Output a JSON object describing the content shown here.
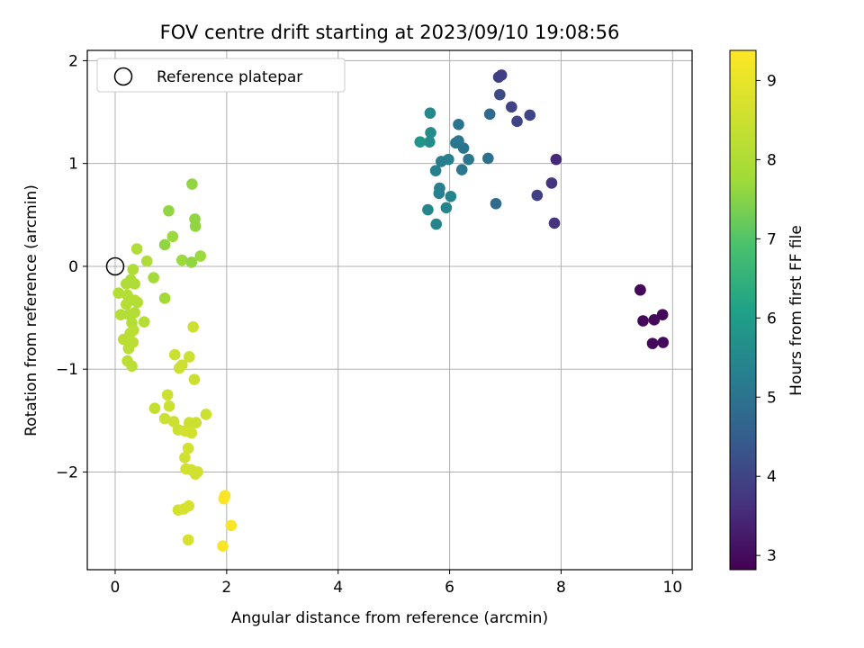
{
  "chart_data": {
    "type": "scatter",
    "title": "FOV centre drift starting at 2023/09/10 19:08:56",
    "xlabel": "Angular distance from reference (arcmin)",
    "ylabel": "Rotation from reference (arcmin)",
    "xlim": [
      -0.5,
      10.35
    ],
    "ylim": [
      -2.95,
      2.1
    ],
    "xticks": [
      0,
      2,
      4,
      6,
      8,
      10
    ],
    "yticks": [
      -2,
      -1,
      0,
      1,
      2
    ],
    "xtick_labels": [
      "0",
      "2",
      "4",
      "6",
      "8",
      "10"
    ],
    "ytick_labels": [
      "−2",
      "−1",
      "0",
      "1",
      "2"
    ],
    "grid": true,
    "legend": {
      "position": "top-left",
      "label": "Reference platepar"
    },
    "reference_point": {
      "x": 0,
      "y": 0
    },
    "colorbar": {
      "label": "Hours from first FF file",
      "min": 2.82,
      "max": 9.38,
      "ticks": [
        3,
        4,
        5,
        6,
        7,
        8,
        9
      ],
      "tick_labels": [
        "3",
        "4",
        "5",
        "6",
        "7",
        "8",
        "9"
      ],
      "colormap": "viridis"
    },
    "points": [
      [
        9.42,
        -0.23,
        2.9
      ],
      [
        9.42,
        -0.23,
        2.9
      ],
      [
        9.47,
        -0.53,
        2.95
      ],
      [
        9.67,
        -0.52,
        2.95
      ],
      [
        9.82,
        -0.47,
        2.95
      ],
      [
        9.64,
        -0.75,
        2.95
      ],
      [
        9.83,
        -0.74,
        2.95
      ],
      [
        6.88,
        1.84,
        3.9
      ],
      [
        6.93,
        1.86,
        3.9
      ],
      [
        7.11,
        1.55,
        4.0
      ],
      [
        7.44,
        1.47,
        4.0
      ],
      [
        7.21,
        1.41,
        4.0
      ],
      [
        6.9,
        1.67,
        4.1
      ],
      [
        7.91,
        1.04,
        3.5
      ],
      [
        7.83,
        0.81,
        3.7
      ],
      [
        7.57,
        0.69,
        3.9
      ],
      [
        7.88,
        0.42,
        3.7
      ],
      [
        6.72,
        1.48,
        4.8
      ],
      [
        6.83,
        0.61,
        4.8
      ],
      [
        6.69,
        1.05,
        4.9
      ],
      [
        6.16,
        1.38,
        5.0
      ],
      [
        6.16,
        1.22,
        5.1
      ],
      [
        6.11,
        1.2,
        5.1
      ],
      [
        6.25,
        1.15,
        5.0
      ],
      [
        6.34,
        1.04,
        5.1
      ],
      [
        6.22,
        0.94,
        5.1
      ],
      [
        5.98,
        1.04,
        5.3
      ],
      [
        5.85,
        1.02,
        5.2
      ],
      [
        5.75,
        0.93,
        5.3
      ],
      [
        5.81,
        0.71,
        5.3
      ],
      [
        5.82,
        0.76,
        5.3
      ],
      [
        6.02,
        0.68,
        5.4
      ],
      [
        5.94,
        0.57,
        5.4
      ],
      [
        5.61,
        0.55,
        5.4
      ],
      [
        5.76,
        0.41,
        5.4
      ],
      [
        5.65,
        1.49,
        5.5
      ],
      [
        5.66,
        1.3,
        5.6
      ],
      [
        5.64,
        1.21,
        5.6
      ],
      [
        5.47,
        1.21,
        5.8
      ],
      [
        1.38,
        0.8,
        7.6
      ],
      [
        0.96,
        0.54,
        7.6
      ],
      [
        1.43,
        0.46,
        7.6
      ],
      [
        1.44,
        0.39,
        7.6
      ],
      [
        1.03,
        0.29,
        7.7
      ],
      [
        0.89,
        0.21,
        7.6
      ],
      [
        1.2,
        0.06,
        7.7
      ],
      [
        1.37,
        0.04,
        7.6
      ],
      [
        1.53,
        0.1,
        7.7
      ],
      [
        0.69,
        -0.11,
        7.8
      ],
      [
        0.89,
        -0.31,
        7.8
      ],
      [
        0.39,
        0.17,
        8.0
      ],
      [
        0.57,
        0.05,
        8.0
      ],
      [
        0.32,
        -0.03,
        8.0
      ],
      [
        0.28,
        -0.13,
        8.0
      ],
      [
        0.35,
        -0.17,
        8.0
      ],
      [
        0.2,
        -0.17,
        8.0
      ],
      [
        0.06,
        -0.26,
        8.1
      ],
      [
        0.22,
        -0.28,
        8.1
      ],
      [
        0.35,
        -0.33,
        8.1
      ],
      [
        0.4,
        -0.35,
        8.1
      ],
      [
        0.2,
        -0.37,
        8.1
      ],
      [
        0.35,
        -0.45,
        8.1
      ],
      [
        0.1,
        -0.47,
        8.1
      ],
      [
        0.25,
        -0.47,
        8.1
      ],
      [
        0.52,
        -0.54,
        8.1
      ],
      [
        0.3,
        -0.55,
        8.1
      ],
      [
        0.33,
        -0.62,
        8.2
      ],
      [
        0.27,
        -0.65,
        8.2
      ],
      [
        0.15,
        -0.71,
        8.2
      ],
      [
        0.32,
        -0.74,
        8.2
      ],
      [
        0.24,
        -0.8,
        8.2
      ],
      [
        0.22,
        -0.92,
        8.2
      ],
      [
        0.3,
        -0.97,
        8.2
      ],
      [
        1.4,
        -0.59,
        8.5
      ],
      [
        1.07,
        -0.86,
        8.5
      ],
      [
        1.33,
        -0.88,
        8.5
      ],
      [
        1.15,
        -0.99,
        8.5
      ],
      [
        1.2,
        -0.96,
        8.5
      ],
      [
        1.42,
        -1.1,
        8.5
      ],
      [
        0.94,
        -1.25,
        8.5
      ],
      [
        0.97,
        -1.36,
        8.5
      ],
      [
        0.71,
        -1.38,
        8.4
      ],
      [
        0.89,
        -1.48,
        8.5
      ],
      [
        1.05,
        -1.51,
        8.5
      ],
      [
        1.13,
        -1.59,
        8.5
      ],
      [
        1.33,
        -1.52,
        8.5
      ],
      [
        1.45,
        -1.52,
        8.5
      ],
      [
        1.63,
        -1.44,
        8.5
      ],
      [
        1.25,
        -1.6,
        8.6
      ],
      [
        1.37,
        -1.62,
        8.6
      ],
      [
        1.31,
        -1.77,
        8.6
      ],
      [
        1.25,
        -1.86,
        8.6
      ],
      [
        1.27,
        -1.97,
        8.6
      ],
      [
        1.37,
        -1.98,
        8.6
      ],
      [
        1.44,
        -2.02,
        8.6
      ],
      [
        1.48,
        -2.0,
        8.6
      ],
      [
        1.13,
        -2.37,
        8.6
      ],
      [
        1.23,
        -2.36,
        8.7
      ],
      [
        1.32,
        -2.33,
        8.7
      ],
      [
        1.31,
        -2.66,
        8.7
      ],
      [
        1.97,
        -2.23,
        9.3
      ],
      [
        1.95,
        -2.26,
        9.3
      ],
      [
        2.08,
        -2.52,
        9.3
      ],
      [
        1.93,
        -2.72,
        9.3
      ]
    ]
  }
}
